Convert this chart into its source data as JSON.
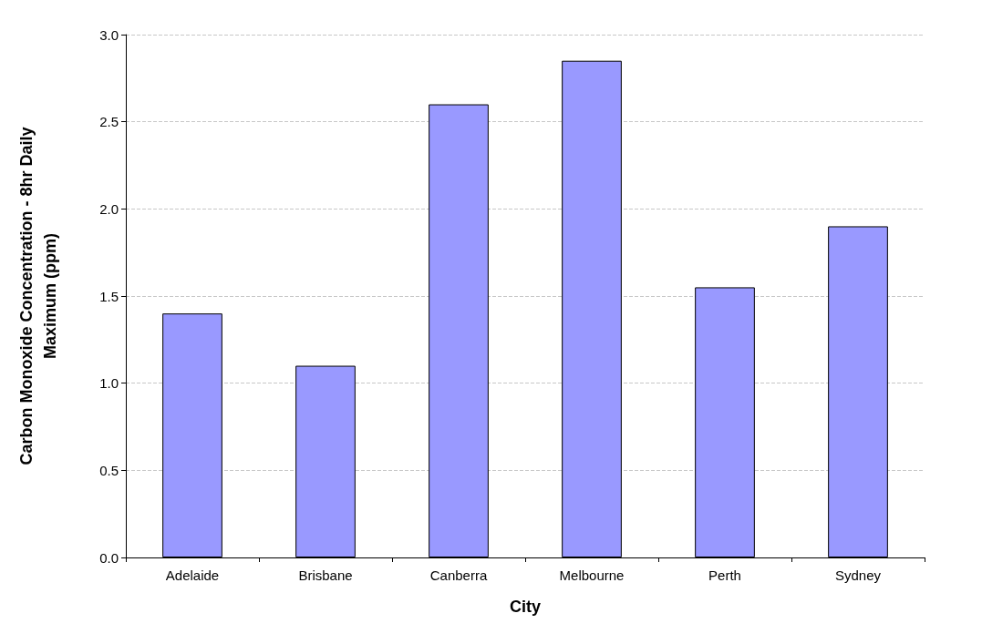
{
  "chart_data": {
    "type": "bar",
    "xlabel": "City",
    "ylabel": "Carbon Monoxide Concentration - 8hr Daily\nMaximum (ppm)",
    "categories": [
      "Adelaide",
      "Brisbane",
      "Canberra",
      "Melbourne",
      "Perth",
      "Sydney"
    ],
    "values": [
      1.4,
      1.1,
      2.6,
      2.85,
      1.55,
      1.9
    ],
    "color": "#9999ff",
    "ylim": [
      0,
      3
    ],
    "yticks": [
      {
        "value": 0,
        "label": "0.0"
      },
      {
        "value": 0.5,
        "label": "0.5"
      },
      {
        "value": 1,
        "label": "1.0"
      },
      {
        "value": 1.5,
        "label": "1.5"
      },
      {
        "value": 2,
        "label": "2.0"
      },
      {
        "value": 2.5,
        "label": "2.5"
      },
      {
        "value": 3,
        "label": "3.0"
      }
    ],
    "grid": "y"
  }
}
